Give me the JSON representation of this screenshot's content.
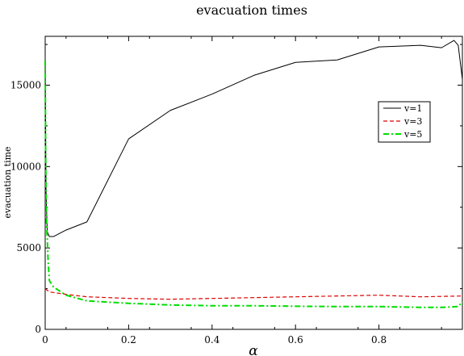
{
  "chart_data": {
    "type": "line",
    "title": "evacuation times",
    "xlabel": "α",
    "ylabel": "evacuation time",
    "xlim": [
      0,
      1
    ],
    "ylim": [
      0,
      18000
    ],
    "xticks": [
      0,
      0.2,
      0.4,
      0.6,
      0.8
    ],
    "xtick_labels": [
      "0",
      "0.2",
      "0.4",
      "0.6",
      "0.8"
    ],
    "yticks": [
      0,
      5000,
      10000,
      15000
    ],
    "ytick_labels": [
      "0",
      "5000",
      "10000",
      "15000"
    ],
    "grid": false,
    "legend_position": "right",
    "series": [
      {
        "name": "v=1",
        "color": "#000000",
        "dash": "solid",
        "x": [
          0,
          0.002,
          0.005,
          0.01,
          0.02,
          0.05,
          0.1,
          0.2,
          0.3,
          0.4,
          0.5,
          0.6,
          0.7,
          0.8,
          0.9,
          0.95,
          0.98,
          0.99,
          1.0
        ],
        "y": [
          16500,
          8500,
          6000,
          5700,
          5700,
          6100,
          6600,
          11700,
          13450,
          14450,
          15600,
          16400,
          16550,
          17350,
          17450,
          17300,
          17750,
          17450,
          15350
        ]
      },
      {
        "name": "v=3",
        "color": "#dd0000",
        "dash": "dashed",
        "x": [
          0,
          0.01,
          0.05,
          0.1,
          0.2,
          0.3,
          0.4,
          0.5,
          0.6,
          0.7,
          0.8,
          0.9,
          1.0
        ],
        "y": [
          2500,
          2300,
          2150,
          2000,
          1900,
          1850,
          1900,
          1950,
          2000,
          2050,
          2100,
          2000,
          2050
        ]
      },
      {
        "name": "v=5",
        "color": "#00dd00",
        "dash": "dashdot",
        "x": [
          0,
          0.001,
          0.003,
          0.005,
          0.007,
          0.01,
          0.02,
          0.05,
          0.1,
          0.2,
          0.3,
          0.4,
          0.5,
          0.6,
          0.7,
          0.8,
          0.9,
          0.95,
          0.99,
          1.0
        ],
        "y": [
          16500,
          11000,
          6500,
          5600,
          4200,
          3000,
          2600,
          2100,
          1750,
          1600,
          1500,
          1450,
          1450,
          1420,
          1400,
          1400,
          1350,
          1350,
          1400,
          1700
        ]
      }
    ]
  }
}
